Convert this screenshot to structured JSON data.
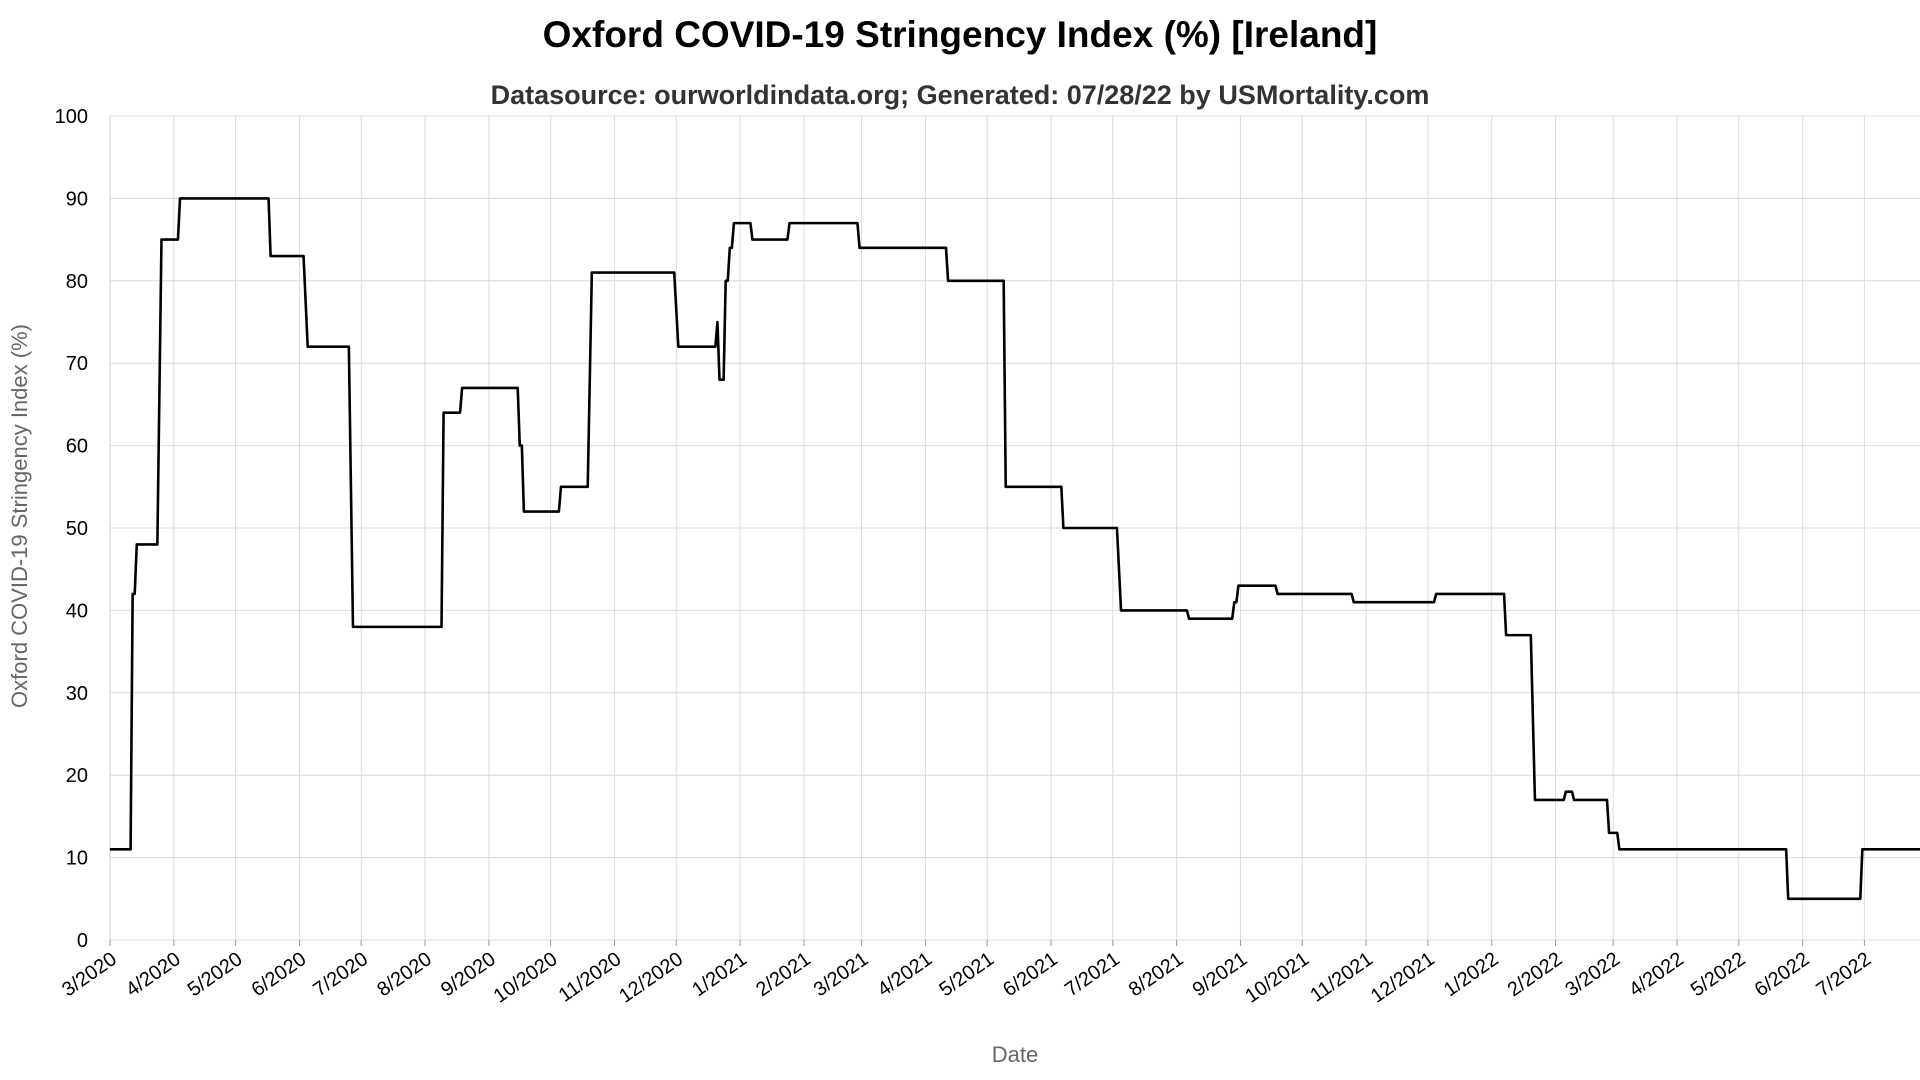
{
  "chart_data": {
    "type": "line",
    "title": "Oxford COVID-19 Stringency Index (%) [Ireland]",
    "subtitle": "Datasource: ourworldindata.org; Generated: 07/28/22 by USMortality.com",
    "xlabel": "Date",
    "ylabel": "Oxford COVID-19 Stringency Index (%)",
    "ylim": [
      0,
      100
    ],
    "yticks": [
      0,
      10,
      20,
      30,
      40,
      50,
      60,
      70,
      80,
      90,
      100
    ],
    "xlim": [
      "2020-03-01",
      "2022-07-28"
    ],
    "xticks": [
      {
        "date": "2020-03-01",
        "label": "3/2020"
      },
      {
        "date": "2020-04-01",
        "label": "4/2020"
      },
      {
        "date": "2020-05-01",
        "label": "5/2020"
      },
      {
        "date": "2020-06-01",
        "label": "6/2020"
      },
      {
        "date": "2020-07-01",
        "label": "7/2020"
      },
      {
        "date": "2020-08-01",
        "label": "8/2020"
      },
      {
        "date": "2020-09-01",
        "label": "9/2020"
      },
      {
        "date": "2020-10-01",
        "label": "10/2020"
      },
      {
        "date": "2020-11-01",
        "label": "11/2020"
      },
      {
        "date": "2020-12-01",
        "label": "12/2020"
      },
      {
        "date": "2021-01-01",
        "label": "1/2021"
      },
      {
        "date": "2021-02-01",
        "label": "2/2021"
      },
      {
        "date": "2021-03-01",
        "label": "3/2021"
      },
      {
        "date": "2021-04-01",
        "label": "4/2021"
      },
      {
        "date": "2021-05-01",
        "label": "5/2021"
      },
      {
        "date": "2021-06-01",
        "label": "6/2021"
      },
      {
        "date": "2021-07-01",
        "label": "7/2021"
      },
      {
        "date": "2021-08-01",
        "label": "8/2021"
      },
      {
        "date": "2021-09-01",
        "label": "9/2021"
      },
      {
        "date": "2021-10-01",
        "label": "10/2021"
      },
      {
        "date": "2021-11-01",
        "label": "11/2021"
      },
      {
        "date": "2021-12-01",
        "label": "12/2021"
      },
      {
        "date": "2022-01-01",
        "label": "1/2022"
      },
      {
        "date": "2022-02-01",
        "label": "2/2022"
      },
      {
        "date": "2022-03-01",
        "label": "3/2022"
      },
      {
        "date": "2022-04-01",
        "label": "4/2022"
      },
      {
        "date": "2022-05-01",
        "label": "5/2022"
      },
      {
        "date": "2022-06-01",
        "label": "6/2022"
      },
      {
        "date": "2022-07-01",
        "label": "7/2022"
      }
    ],
    "grid": true,
    "series": [
      {
        "color": "#000000",
        "points": [
          [
            "2020-03-01",
            11
          ],
          [
            "2020-03-11",
            11
          ],
          [
            "2020-03-12",
            42
          ],
          [
            "2020-03-13",
            42
          ],
          [
            "2020-03-14",
            48
          ],
          [
            "2020-03-24",
            48
          ],
          [
            "2020-03-26",
            85
          ],
          [
            "2020-04-03",
            85
          ],
          [
            "2020-04-04",
            90
          ],
          [
            "2020-05-17",
            90
          ],
          [
            "2020-05-18",
            83
          ],
          [
            "2020-06-03",
            83
          ],
          [
            "2020-06-05",
            72
          ],
          [
            "2020-06-25",
            72
          ],
          [
            "2020-06-27",
            38
          ],
          [
            "2020-08-09",
            38
          ],
          [
            "2020-08-10",
            64
          ],
          [
            "2020-08-18",
            64
          ],
          [
            "2020-08-19",
            67
          ],
          [
            "2020-09-15",
            67
          ],
          [
            "2020-09-16",
            60
          ],
          [
            "2020-09-17",
            60
          ],
          [
            "2020-09-18",
            52
          ],
          [
            "2020-10-05",
            52
          ],
          [
            "2020-10-06",
            55
          ],
          [
            "2020-10-19",
            55
          ],
          [
            "2020-10-21",
            81
          ],
          [
            "2020-11-30",
            81
          ],
          [
            "2020-12-02",
            72
          ],
          [
            "2020-12-20",
            72
          ],
          [
            "2020-12-21",
            75
          ],
          [
            "2020-12-22",
            68
          ],
          [
            "2020-12-24",
            68
          ],
          [
            "2020-12-25",
            80
          ],
          [
            "2020-12-26",
            80
          ],
          [
            "2020-12-27",
            84
          ],
          [
            "2020-12-28",
            84
          ],
          [
            "2020-12-29",
            87
          ],
          [
            "2021-01-06",
            87
          ],
          [
            "2021-01-07",
            85
          ],
          [
            "2021-01-24",
            85
          ],
          [
            "2021-01-25",
            87
          ],
          [
            "2021-02-27",
            87
          ],
          [
            "2021-02-28",
            84
          ],
          [
            "2021-04-11",
            84
          ],
          [
            "2021-04-12",
            80
          ],
          [
            "2021-05-09",
            80
          ],
          [
            "2021-05-10",
            55
          ],
          [
            "2021-06-06",
            55
          ],
          [
            "2021-06-07",
            50
          ],
          [
            "2021-07-03",
            50
          ],
          [
            "2021-07-05",
            40
          ],
          [
            "2021-08-06",
            40
          ],
          [
            "2021-08-07",
            39
          ],
          [
            "2021-08-28",
            39
          ],
          [
            "2021-08-29",
            41
          ],
          [
            "2021-08-30",
            41
          ],
          [
            "2021-08-31",
            43
          ],
          [
            "2021-09-18",
            43
          ],
          [
            "2021-09-19",
            42
          ],
          [
            "2021-10-25",
            42
          ],
          [
            "2021-10-26",
            41
          ],
          [
            "2021-12-04",
            41
          ],
          [
            "2021-12-05",
            42
          ],
          [
            "2022-01-07",
            42
          ],
          [
            "2022-01-08",
            37
          ],
          [
            "2022-01-20",
            37
          ],
          [
            "2022-01-22",
            17
          ],
          [
            "2022-02-05",
            17
          ],
          [
            "2022-02-06",
            18
          ],
          [
            "2022-02-09",
            18
          ],
          [
            "2022-02-10",
            17
          ],
          [
            "2022-02-26",
            17
          ],
          [
            "2022-02-27",
            13
          ],
          [
            "2022-03-03",
            13
          ],
          [
            "2022-03-04",
            11
          ],
          [
            "2022-05-24",
            11
          ],
          [
            "2022-05-25",
            5
          ],
          [
            "2022-06-29",
            5
          ],
          [
            "2022-06-30",
            11
          ],
          [
            "2022-07-28",
            11
          ]
        ]
      }
    ]
  }
}
